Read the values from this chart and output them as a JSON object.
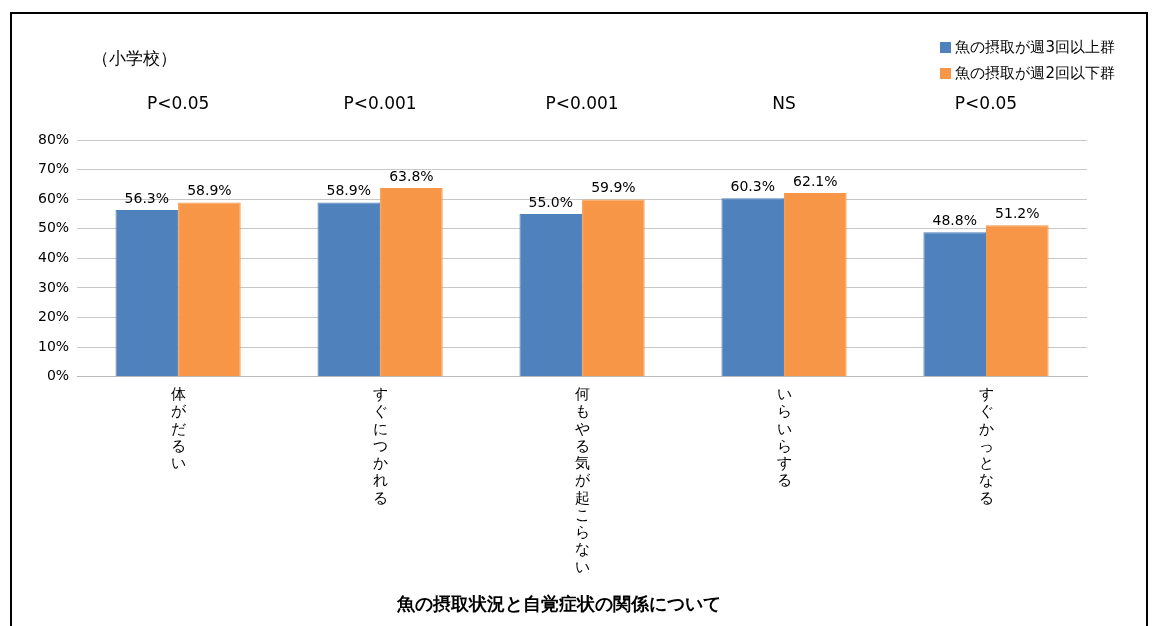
{
  "chart_data": {
    "type": "bar",
    "title": "魚の摂取状況と自覚症状の関係について",
    "subtitle": "（小学校）",
    "categories": [
      "体がだるい",
      "すぐにつかれる",
      "何もやる気が起こらない",
      "いらいらする",
      "すぐかっとなる"
    ],
    "series": [
      {
        "name": "魚の摂取が週3回以上群",
        "color": "#4f81bd",
        "values": [
          56.3,
          58.9,
          55.0,
          60.3,
          48.8
        ],
        "value_labels": [
          "56.3%",
          "58.9%",
          "55.0%",
          "60.3%",
          "48.8%"
        ]
      },
      {
        "name": "魚の摂取が週2回以下群",
        "color": "#f79646",
        "values": [
          58.9,
          63.8,
          59.9,
          62.1,
          51.2
        ],
        "value_labels": [
          "58.9%",
          "63.8%",
          "59.9%",
          "62.1%",
          "51.2%"
        ]
      }
    ],
    "annotations": [
      "P<0.05",
      "P<0.001",
      "P<0.001",
      "NS",
      "P<0.05"
    ],
    "ylim": [
      0,
      80
    ],
    "yticks": [
      {
        "value": 0,
        "label": "0%"
      },
      {
        "value": 10,
        "label": "10%"
      },
      {
        "value": 20,
        "label": "20%"
      },
      {
        "value": 30,
        "label": "30%"
      },
      {
        "value": 40,
        "label": "40%"
      },
      {
        "value": 50,
        "label": "50%"
      },
      {
        "value": 60,
        "label": "60%"
      },
      {
        "value": 70,
        "label": "70%"
      },
      {
        "value": 80,
        "label": "80%"
      }
    ],
    "grid": "y",
    "legend": "top right"
  }
}
